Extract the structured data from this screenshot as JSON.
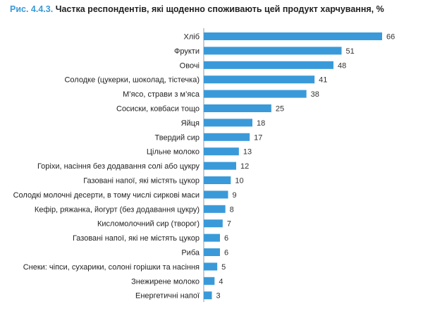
{
  "figure": {
    "number": "Рис. 4.4.3.",
    "title": "Частка респондентів, які щоденно споживають цей продукт харчування, %"
  },
  "colors": {
    "bar": "#3a9ad9",
    "figure_number": "#3a9ad9"
  },
  "chart_data": {
    "type": "bar",
    "orientation": "horizontal",
    "title": "Частка респондентів, які щоденно споживають цей продукт харчування, %",
    "categories": [
      "Хліб",
      "Фрукти",
      "Овочі",
      "Солодке (цукерки, шоколад, тістечка)",
      "М’ясо, страви з м’яса",
      "Сосиски, ковбаси тощо",
      "Яйця",
      "Твердий сир",
      "Цільне молоко",
      "Горіхи, насіння без додавання солі або цукру",
      "Газовані напої, які містять цукор",
      "Солодкі молочні десерти, в тому числі сиркові маси",
      "Кефір, ряжанка, йогурт (без додавання цукру)",
      "Кисломолочний сир (творог)",
      "Газовані напої, які не містять цукор",
      "Риба",
      "Снеки: чіпси, сухарики, солоні горішки та насіння",
      "Знежирене молоко",
      "Енергетичні напої"
    ],
    "values": [
      66,
      51,
      48,
      41,
      38,
      25,
      18,
      17,
      13,
      12,
      10,
      9,
      8,
      7,
      6,
      6,
      5,
      4,
      3
    ],
    "xlim": [
      0,
      66
    ],
    "grid": false,
    "legend": false
  }
}
